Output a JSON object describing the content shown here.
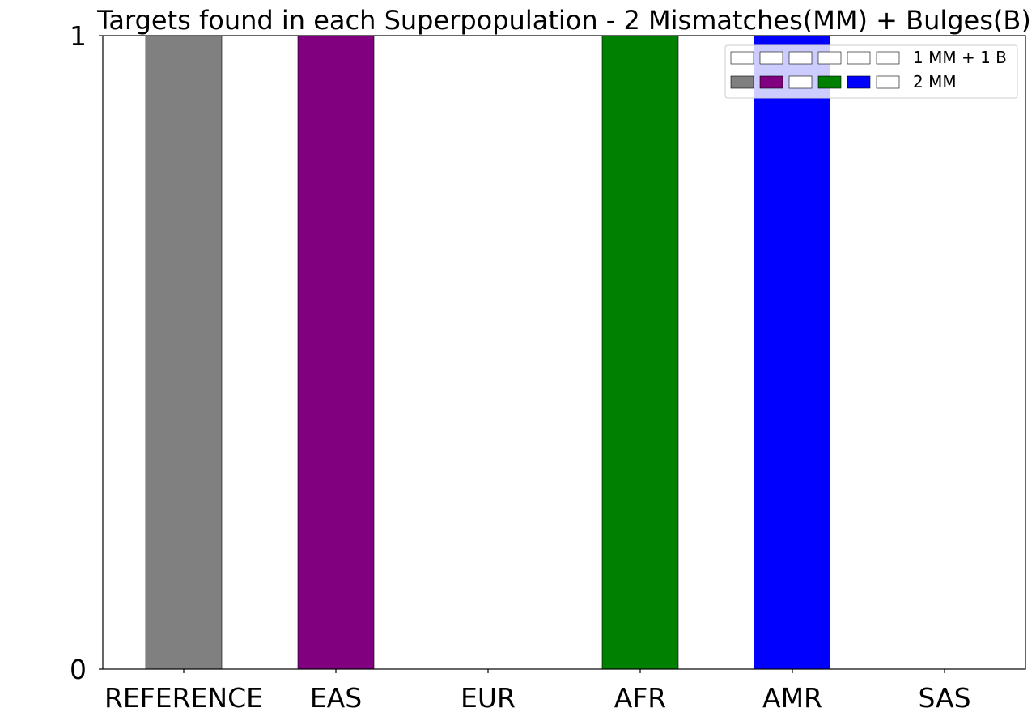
{
  "chart_data": {
    "type": "bar",
    "title": "Targets found in each Superpopulation - 2 Mismatches(MM) + Bulges(B)",
    "xlabel": "",
    "ylabel": "",
    "categories": [
      "REFERENCE",
      "EAS",
      "EUR",
      "AFR",
      "AMR",
      "SAS"
    ],
    "ylim": [
      0,
      1
    ],
    "yticks": [
      "0",
      "1"
    ],
    "grid": false,
    "series": [
      {
        "name": "1 MM + 1 B",
        "values": [
          0,
          0,
          0,
          0,
          0,
          0
        ],
        "colors": [
          "#ffffff",
          "#ffffff",
          "#ffffff",
          "#ffffff",
          "#ffffff",
          "#ffffff"
        ]
      },
      {
        "name": "2 MM",
        "values": [
          1,
          1,
          0,
          1,
          1,
          0
        ],
        "colors": [
          "#808080",
          "#800080",
          "#ffffff",
          "#008000",
          "#0000ff",
          "#ffffff"
        ]
      }
    ],
    "legend_position": "top-right"
  }
}
